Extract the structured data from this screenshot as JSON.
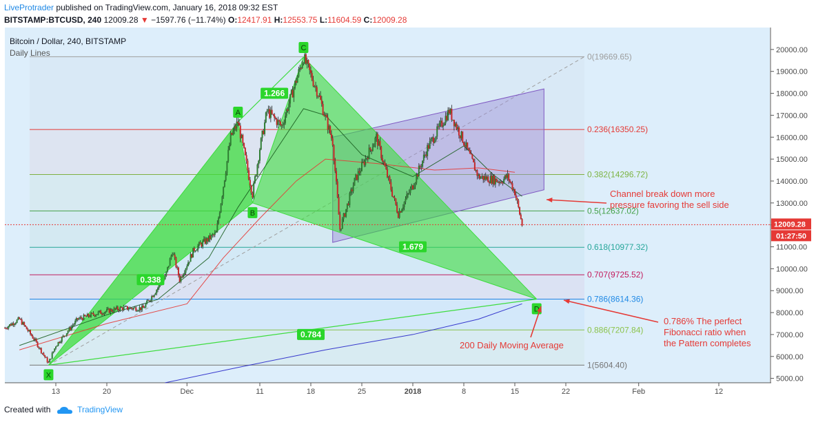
{
  "header": {
    "author": "LiveProtrader",
    "published": "published on TradingView.com, January 16, 2018 09:32 EST",
    "symbol": "BITSTAMP:BTCUSD, 240",
    "price": "12009.28",
    "change_arrow": "▼",
    "change": "−1597.76 (−11.74%)",
    "o_label": "O:",
    "o_value": "12417.91",
    "h_label": "H:",
    "h_value": "12553.75",
    "l_label": "L:",
    "l_value": "11604.59",
    "c_label": "C:",
    "c_value": "12009.28"
  },
  "legend": {
    "title": "Bitcoin / Dollar, 240, BITSTAMP",
    "sub": "Daily Lines"
  },
  "footer": {
    "created_with": "Created with",
    "brand": "TradingView"
  },
  "colors": {
    "pattern": "#3ddc3d",
    "channel": "#9c8fd8",
    "annotation": "#e53935",
    "ma200": "#2323c8"
  },
  "chart_data": {
    "type": "line",
    "title": "Bitcoin / Dollar, 240, BITSTAMP",
    "ylim": [
      4800,
      21000
    ],
    "x_ticks": [
      "13",
      "20",
      "Dec",
      "11",
      "18",
      "25",
      "2018",
      "8",
      "15",
      "22",
      "Feb",
      "12"
    ],
    "y_ticks": [
      "5000.00",
      "6000.00",
      "7000.00",
      "8000.00",
      "9000.00",
      "10000.00",
      "11000.00",
      "12000.00",
      "13000.00",
      "14000.00",
      "15000.00",
      "16000.00",
      "17000.00",
      "18000.00",
      "19000.00",
      "20000.00"
    ],
    "last_price_label": "12009.28",
    "countdown_label": "01:27:50",
    "price_path": [
      [
        "2017-11-06",
        7300
      ],
      [
        "2017-11-08",
        7700
      ],
      [
        "2017-11-10",
        6800
      ],
      [
        "2017-11-12",
        5700
      ],
      [
        "2017-11-13",
        6500
      ],
      [
        "2017-11-16",
        7700
      ],
      [
        "2017-11-19",
        8000
      ],
      [
        "2017-11-22",
        8200
      ],
      [
        "2017-11-25",
        8200
      ],
      [
        "2017-11-28",
        9600
      ],
      [
        "2017-11-29",
        10800
      ],
      [
        "2017-11-30",
        9500
      ],
      [
        "2017-12-02",
        10900
      ],
      [
        "2017-12-05",
        11600
      ],
      [
        "2017-12-07",
        16000
      ],
      [
        "2017-12-08",
        16700
      ],
      [
        "2017-12-10",
        13400
      ],
      [
        "2017-12-11",
        15500
      ],
      [
        "2017-12-12",
        17200
      ],
      [
        "2017-12-14",
        16500
      ],
      [
        "2017-12-17",
        19650
      ],
      [
        "2017-12-19",
        18000
      ],
      [
        "2017-12-21",
        15800
      ],
      [
        "2017-12-22",
        11800
      ],
      [
        "2017-12-24",
        14000
      ],
      [
        "2017-12-27",
        16000
      ],
      [
        "2017-12-28",
        14800
      ],
      [
        "2017-12-30",
        12500
      ],
      [
        "2018-01-01",
        13800
      ],
      [
        "2018-01-03",
        15500
      ],
      [
        "2018-01-06",
        17200
      ],
      [
        "2018-01-08",
        15800
      ],
      [
        "2018-01-10",
        14200
      ],
      [
        "2018-01-13",
        14000
      ],
      [
        "2018-01-14",
        14200
      ],
      [
        "2018-01-15",
        13500
      ],
      [
        "2018-01-16",
        12009
      ]
    ],
    "ma_lines": [
      {
        "name": "",
        "color": "#1b5e20",
        "points": [
          [
            "2017-11-08",
            6500
          ],
          [
            "2017-11-20",
            7900
          ],
          [
            "2017-11-27",
            8600
          ],
          [
            "2017-12-04",
            10500
          ],
          [
            "2017-12-08",
            12800
          ],
          [
            "2017-12-12",
            14800
          ],
          [
            "2017-12-17",
            17300
          ],
          [
            "2017-12-20",
            17000
          ],
          [
            "2017-12-25",
            15200
          ],
          [
            "2018-01-01",
            14200
          ],
          [
            "2018-01-08",
            15600
          ],
          [
            "2018-01-12",
            14300
          ],
          [
            "2018-01-16",
            13300
          ]
        ]
      },
      {
        "name": "",
        "color": "#e53935",
        "points": [
          [
            "2017-11-08",
            6300
          ],
          [
            "2017-11-20",
            7500
          ],
          [
            "2017-12-01",
            8400
          ],
          [
            "2017-12-06",
            10500
          ],
          [
            "2017-12-11",
            12300
          ],
          [
            "2017-12-16",
            14000
          ],
          [
            "2017-12-20",
            15000
          ],
          [
            "2017-12-27",
            14800
          ],
          [
            "2018-01-04",
            14500
          ],
          [
            "2018-01-10",
            14600
          ],
          [
            "2018-01-15",
            14400
          ]
        ]
      },
      {
        "name": "",
        "color": "#2323c8",
        "points": [
          [
            "2017-11-28",
            4800
          ],
          [
            "2017-12-08",
            5500
          ],
          [
            "2017-12-20",
            6300
          ],
          [
            "2018-01-01",
            7000
          ],
          [
            "2018-01-10",
            7700
          ],
          [
            "2018-01-16",
            8400
          ]
        ]
      }
    ],
    "harmonic_points": [
      {
        "label": "X",
        "date": "2017-11-12",
        "price": 5604
      },
      {
        "label": "A",
        "date": "2017-12-08",
        "price": 16700
      },
      {
        "label": "B",
        "date": "2017-12-10",
        "price": 13000
      },
      {
        "label": "C",
        "date": "2017-12-17",
        "price": 19650
      },
      {
        "label": "D",
        "date": "2018-01-18",
        "price": 8614
      }
    ],
    "harmonic_ratios": [
      {
        "label": "0.338",
        "date": "2017-11-26",
        "price": 9500
      },
      {
        "label": "1.266",
        "date": "2017-12-13",
        "price": 18000
      },
      {
        "label": "1.679",
        "date": "2018-01-01",
        "price": 11000
      },
      {
        "label": "0.784",
        "date": "2017-12-18",
        "price": 7000
      }
    ],
    "fibonacci_levels": [
      {
        "label": "0(19669.65)",
        "level": 19669.65,
        "color": "#9e9e9e"
      },
      {
        "label": "0.236(16350.25)",
        "level": 16350.25,
        "color": "#e53935"
      },
      {
        "label": "0.382(14296.72)",
        "level": 14296.72,
        "color": "#7cb342"
      },
      {
        "label": "0.5(12637.02)",
        "level": 12637.02,
        "color": "#43a047"
      },
      {
        "label": "0.618(10977.32)",
        "level": 10977.32,
        "color": "#26a69a"
      },
      {
        "label": "0.707(9725.52)",
        "level": 9725.52,
        "color": "#c2185b"
      },
      {
        "label": "0.786(8614.36)",
        "level": 8614.36,
        "color": "#1e88e5"
      },
      {
        "label": "0.886(7207.84)",
        "level": 7207.84,
        "color": "#8bc34a"
      },
      {
        "label": "1(5604.40)",
        "level": 5604.4,
        "color": "#757575"
      }
    ],
    "channel": {
      "upper": [
        [
          "2017-12-21",
          16000
        ],
        [
          "2018-01-19",
          18200
        ]
      ],
      "lower": [
        [
          "2017-12-21",
          11200
        ],
        [
          "2018-01-19",
          13600
        ]
      ]
    },
    "annotations": [
      {
        "text_lines": [
          "Channel break down more",
          "pressure favoring the sell side"
        ]
      },
      {
        "text_lines": [
          "0.786% The perfect",
          "Fibonacci ratio when",
          "the Pattern completes"
        ]
      },
      {
        "text_lines": [
          "200 Daily Moving Average"
        ]
      }
    ]
  }
}
